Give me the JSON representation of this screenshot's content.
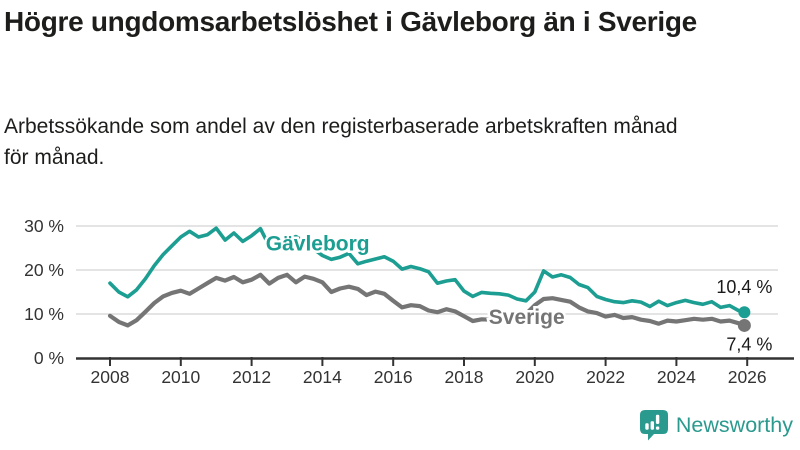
{
  "header": {
    "title": "Högre ungdomsarbetslöshet i Gävleborg än i Sverige",
    "subtitle": "Arbetssökande som andel av den registerbaserade arbetskraften månad för månad."
  },
  "colors": {
    "accent_teal": "#1C9E92",
    "line_gray": "#757575",
    "grid": "#DBDBDB",
    "axis": "#333333",
    "tick_text": "#333333",
    "label_text": "#1A1A1A",
    "background": "#FFFFFF"
  },
  "chart_data": {
    "type": "line",
    "title": "Högre ungdomsarbetslöshet i Gävleborg än i Sverige",
    "subtitle": "Arbetssökande som andel av den registerbaserade arbetskraften månad för månad.",
    "xlabel": "",
    "ylabel": "",
    "y_unit": "%",
    "grid": "horizontal",
    "legend_position": "inline-labels",
    "xlim": [
      2007.7,
      2026.5
    ],
    "ylim": [
      0,
      33
    ],
    "xticks": [
      {
        "x": 2008,
        "label": "2008"
      },
      {
        "x": 2010,
        "label": "2010"
      },
      {
        "x": 2012,
        "label": "2012"
      },
      {
        "x": 2014,
        "label": "2014"
      },
      {
        "x": 2016,
        "label": "2016"
      },
      {
        "x": 2018,
        "label": "2018"
      },
      {
        "x": 2020,
        "label": "2020"
      },
      {
        "x": 2022,
        "label": "2022"
      },
      {
        "x": 2024,
        "label": "2024"
      },
      {
        "x": 2026,
        "label": "2026"
      }
    ],
    "yticks": [
      {
        "y": 0,
        "label": "0 %"
      },
      {
        "y": 10,
        "label": "10 %"
      },
      {
        "y": 20,
        "label": "20 %"
      },
      {
        "y": 30,
        "label": "30 %"
      }
    ],
    "x": [
      2008,
      2008.25,
      2008.5,
      2008.75,
      2009,
      2009.25,
      2009.5,
      2009.75,
      2010,
      2010.25,
      2010.5,
      2010.75,
      2011,
      2011.25,
      2011.5,
      2011.75,
      2012,
      2012.25,
      2012.5,
      2012.75,
      2013,
      2013.25,
      2013.5,
      2013.75,
      2014,
      2014.25,
      2014.5,
      2014.75,
      2015,
      2015.25,
      2015.5,
      2015.75,
      2016,
      2016.25,
      2016.5,
      2016.75,
      2017,
      2017.25,
      2017.5,
      2017.75,
      2018,
      2018.25,
      2018.5,
      2018.75,
      2019,
      2019.25,
      2019.5,
      2019.75,
      2020,
      2020.25,
      2020.5,
      2020.75,
      2021,
      2021.25,
      2021.5,
      2021.75,
      2022,
      2022.25,
      2022.5,
      2022.75,
      2023,
      2023.25,
      2023.5,
      2023.75,
      2024,
      2024.25,
      2024.5,
      2024.75,
      2025,
      2025.25,
      2025.5,
      2025.75,
      2025.92
    ],
    "series": [
      {
        "name": "Gävleborg",
        "color": "#1C9E92",
        "line_width": 3.6,
        "dot_radius": 6,
        "end_value": 10.4,
        "end_label": "10,4 %",
        "end_label_side": "above",
        "inline_label_pos": {
          "x": 2012.4,
          "y": 24.4
        },
        "values": [
          17.0,
          15.0,
          13.9,
          15.5,
          18.0,
          21.0,
          23.5,
          25.5,
          27.5,
          28.8,
          27.5,
          28.0,
          29.5,
          26.8,
          28.4,
          26.5,
          27.8,
          29.4,
          25.4,
          26.5,
          27.0,
          27.6,
          26.5,
          24.8,
          23.3,
          22.4,
          22.9,
          23.8,
          21.4,
          22.0,
          22.5,
          23.0,
          22.0,
          20.2,
          20.8,
          20.3,
          19.6,
          17.0,
          17.5,
          17.8,
          15.2,
          14.0,
          14.9,
          14.7,
          14.6,
          14.3,
          13.4,
          13.0,
          15.0,
          19.8,
          18.4,
          18.9,
          18.3,
          16.7,
          16.0,
          14.0,
          13.3,
          12.8,
          12.6,
          13.0,
          12.7,
          11.7,
          12.9,
          11.9,
          12.6,
          13.1,
          12.6,
          12.2,
          12.8,
          11.5,
          11.9,
          10.8,
          10.4
        ]
      },
      {
        "name": "Sverige",
        "color": "#757575",
        "line_width": 4.2,
        "dot_radius": 6.5,
        "end_value": 7.4,
        "end_label": "7,4 %",
        "end_label_side": "below",
        "inline_label_pos": {
          "x": 2018.7,
          "y": 7.7
        },
        "values": [
          9.6,
          8.2,
          7.4,
          8.6,
          10.5,
          12.5,
          14.0,
          14.8,
          15.3,
          14.6,
          15.8,
          17.0,
          18.2,
          17.6,
          18.4,
          17.2,
          17.8,
          18.9,
          16.9,
          18.2,
          18.9,
          17.2,
          18.5,
          18.0,
          17.2,
          15.0,
          15.8,
          16.2,
          15.7,
          14.3,
          15.1,
          14.6,
          13.0,
          11.5,
          12.0,
          11.8,
          10.8,
          10.4,
          11.1,
          10.6,
          9.5,
          8.4,
          8.8,
          8.7,
          8.8,
          8.4,
          8.8,
          10.0,
          12.0,
          13.4,
          13.6,
          13.2,
          12.8,
          11.5,
          10.6,
          10.2,
          9.4,
          9.8,
          9.1,
          9.3,
          8.7,
          8.4,
          7.8,
          8.5,
          8.3,
          8.6,
          8.9,
          8.7,
          8.9,
          8.3,
          8.5,
          7.9,
          7.4
        ]
      }
    ]
  },
  "footer": {
    "brand": "Newsworthy",
    "brand_color": "#2B9A8E",
    "logo_icon": "bar-chart-speech-bubble-icon"
  }
}
